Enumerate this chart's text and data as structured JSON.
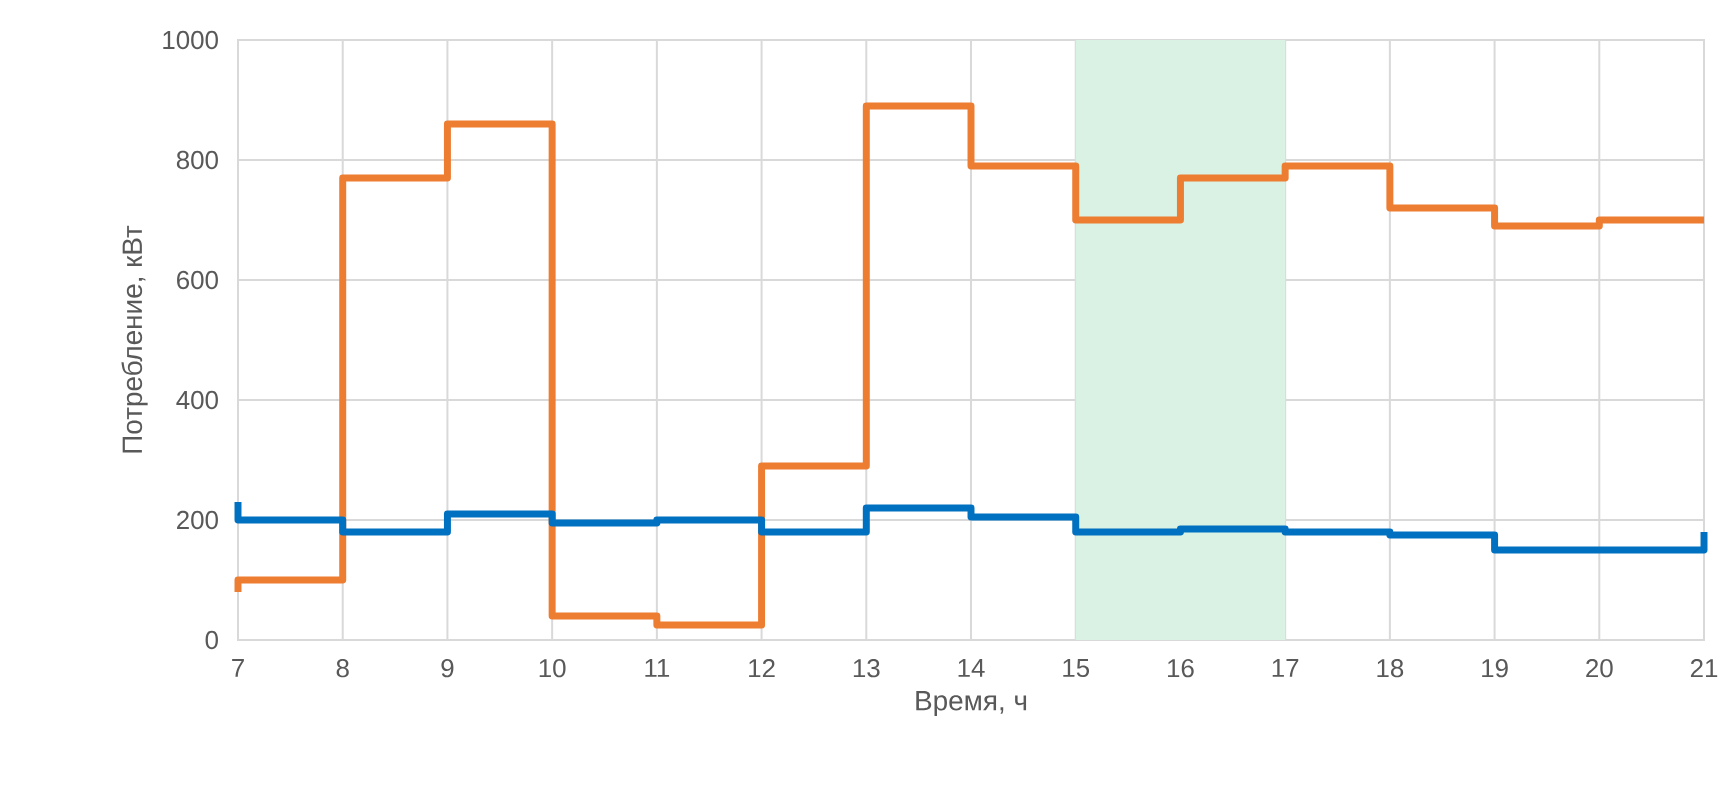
{
  "chart_data": {
    "type": "step",
    "xlabel": "Время, ч",
    "ylabel": "Потребление, кВт",
    "x": [
      7,
      7,
      8,
      9,
      10,
      11,
      12,
      13,
      14,
      15,
      16,
      17,
      18,
      19,
      20,
      21
    ],
    "series": [
      {
        "color": "#ed7d31",
        "values": [
          80,
          100,
          770,
          860,
          40,
          25,
          290,
          890,
          790,
          700,
          770,
          790,
          720,
          690,
          700,
          700
        ]
      },
      {
        "color": "#0070c0",
        "values": [
          230,
          200,
          180,
          210,
          195,
          200,
          180,
          220,
          205,
          180,
          185,
          180,
          175,
          150,
          150,
          180
        ]
      }
    ],
    "xlim": [
      7,
      21
    ],
    "xticks": [
      7,
      8,
      9,
      10,
      11,
      12,
      13,
      14,
      15,
      16,
      17,
      18,
      19,
      20,
      21
    ],
    "ylim": [
      0,
      1000
    ],
    "yticks": [
      0,
      200,
      400,
      600,
      800,
      1000
    ],
    "grid": true,
    "bands": [
      {
        "axis": "x",
        "from": 15,
        "to": 17,
        "color": "#d9f2e3"
      }
    ]
  }
}
